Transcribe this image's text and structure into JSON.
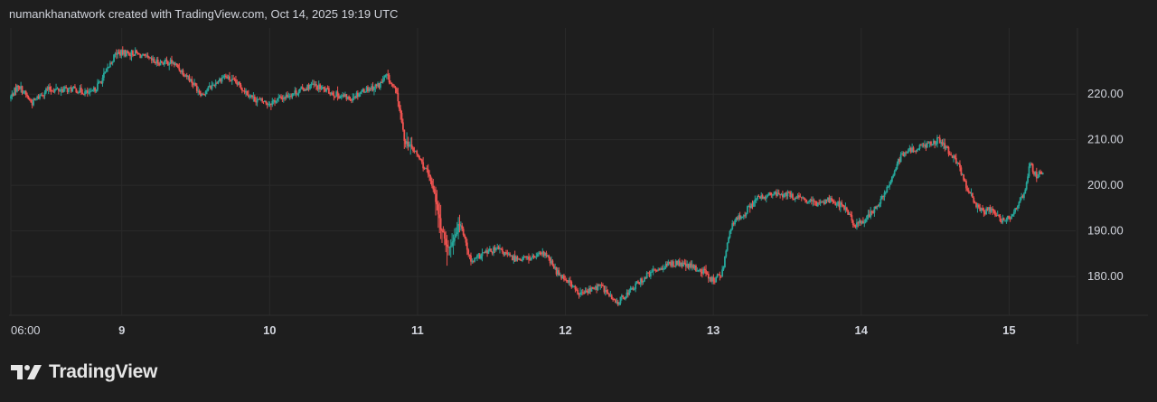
{
  "header": {
    "attribution": "numankhanatwork created with TradingView.com, Oct 14, 2025 19:19 UTC"
  },
  "branding": {
    "logo_text": "TradingView"
  },
  "colors": {
    "background": "#1e1e1e",
    "up": "#26a69a",
    "down": "#ef5350",
    "grid": "#2a2a2a",
    "text": "#d1d4dc"
  },
  "chart_data": {
    "type": "candlestick",
    "y_ticks": [
      "220.00",
      "210.00",
      "200.00",
      "190.00",
      "180.00"
    ],
    "y_tick_values": [
      220,
      210,
      200,
      190,
      180
    ],
    "ylim": [
      171.5,
      234.5
    ],
    "x_ticks": [
      {
        "label": "06:00",
        "t": 0,
        "bold": false
      },
      {
        "label": "9",
        "t": 0.75,
        "bold": true
      },
      {
        "label": "10",
        "t": 1.75,
        "bold": true
      },
      {
        "label": "11",
        "t": 2.75,
        "bold": true
      },
      {
        "label": "12",
        "t": 3.75,
        "bold": true
      },
      {
        "label": "13",
        "t": 4.75,
        "bold": true
      },
      {
        "label": "14",
        "t": 5.75,
        "bold": true
      },
      {
        "label": "15",
        "t": 6.75,
        "bold": true
      }
    ],
    "xlim": [
      0,
      7.2
    ],
    "price_path": [
      [
        0.0,
        219
      ],
      [
        0.06,
        222
      ],
      [
        0.15,
        218
      ],
      [
        0.25,
        221
      ],
      [
        0.45,
        221
      ],
      [
        0.55,
        220
      ],
      [
        0.62,
        223
      ],
      [
        0.72,
        229
      ],
      [
        0.85,
        229
      ],
      [
        0.98,
        227
      ],
      [
        1.1,
        227
      ],
      [
        1.2,
        224
      ],
      [
        1.3,
        220
      ],
      [
        1.45,
        224
      ],
      [
        1.55,
        222
      ],
      [
        1.65,
        219
      ],
      [
        1.75,
        218
      ],
      [
        1.9,
        220
      ],
      [
        2.05,
        222
      ],
      [
        2.2,
        220
      ],
      [
        2.3,
        219
      ],
      [
        2.4,
        221
      ],
      [
        2.5,
        222
      ],
      [
        2.55,
        224
      ],
      [
        2.62,
        220
      ],
      [
        2.67,
        210
      ],
      [
        2.75,
        207
      ],
      [
        2.82,
        203
      ],
      [
        2.87,
        199
      ],
      [
        2.92,
        190
      ],
      [
        2.97,
        186
      ],
      [
        3.05,
        192
      ],
      [
        3.12,
        183
      ],
      [
        3.2,
        185
      ],
      [
        3.3,
        186
      ],
      [
        3.4,
        184
      ],
      [
        3.52,
        184
      ],
      [
        3.62,
        185
      ],
      [
        3.7,
        181
      ],
      [
        3.78,
        179
      ],
      [
        3.85,
        176
      ],
      [
        3.92,
        177
      ],
      [
        4.0,
        178
      ],
      [
        4.1,
        174
      ],
      [
        4.2,
        177
      ],
      [
        4.3,
        180
      ],
      [
        4.4,
        182
      ],
      [
        4.5,
        183
      ],
      [
        4.62,
        182
      ],
      [
        4.7,
        181
      ],
      [
        4.76,
        179
      ],
      [
        4.82,
        181
      ],
      [
        4.86,
        189
      ],
      [
        4.9,
        192
      ],
      [
        4.97,
        194
      ],
      [
        5.05,
        197
      ],
      [
        5.15,
        198
      ],
      [
        5.25,
        198
      ],
      [
        5.35,
        197
      ],
      [
        5.45,
        196
      ],
      [
        5.55,
        197
      ],
      [
        5.65,
        195
      ],
      [
        5.72,
        191
      ],
      [
        5.8,
        193
      ],
      [
        5.88,
        196
      ],
      [
        5.95,
        200
      ],
      [
        6.0,
        205
      ],
      [
        6.05,
        207
      ],
      [
        6.12,
        208
      ],
      [
        6.2,
        209
      ],
      [
        6.28,
        210
      ],
      [
        6.36,
        207
      ],
      [
        6.42,
        204
      ],
      [
        6.48,
        199
      ],
      [
        6.53,
        196
      ],
      [
        6.58,
        194
      ],
      [
        6.65,
        195
      ],
      [
        6.7,
        192
      ],
      [
        6.76,
        193
      ],
      [
        6.82,
        196
      ],
      [
        6.87,
        199
      ],
      [
        6.9,
        205
      ],
      [
        6.94,
        202
      ],
      [
        6.98,
        203
      ]
    ]
  }
}
